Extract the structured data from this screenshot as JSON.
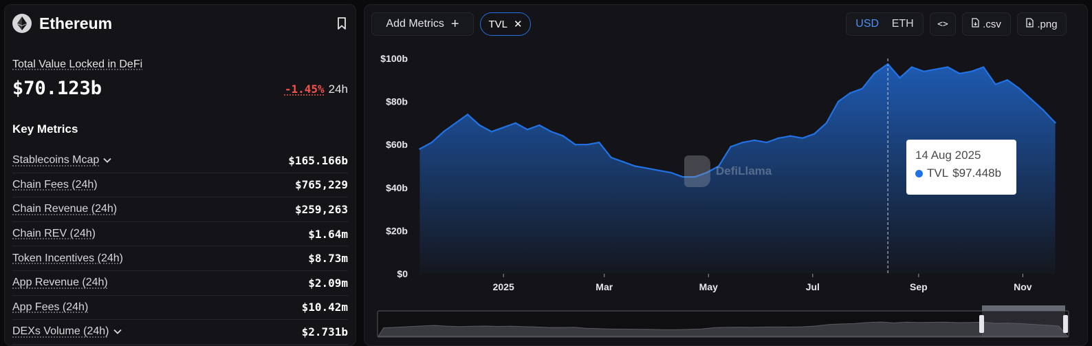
{
  "chain": {
    "name": "Ethereum",
    "logo_icon": "ethereum-diamond-icon",
    "bookmark_icon": "bookmark-icon"
  },
  "tvl": {
    "label": "Total Value Locked in DeFi",
    "value": "$70.123b",
    "change_pct": "-1.45%",
    "change_period": "24h"
  },
  "key_metrics": {
    "title": "Key Metrics",
    "rows": [
      {
        "label": "Stablecoins Mcap",
        "value": "$165.166b",
        "expandable": true
      },
      {
        "label": "Chain Fees (24h)",
        "value": "$765,229",
        "expandable": false
      },
      {
        "label": "Chain Revenue (24h)",
        "value": "$259,263",
        "expandable": false
      },
      {
        "label": "Chain REV (24h)",
        "value": "$1.64m",
        "expandable": false
      },
      {
        "label": "Token Incentives (24h)",
        "value": "$8.73m",
        "expandable": false
      },
      {
        "label": "App Revenue (24h)",
        "value": "$2.09m",
        "expandable": false
      },
      {
        "label": "App Fees (24h)",
        "value": "$10.42m",
        "expandable": false
      },
      {
        "label": "DEXs Volume (24h)",
        "value": "$2.731b",
        "expandable": true
      }
    ]
  },
  "toolbar": {
    "add_metrics_label": "Add Metrics",
    "add_icon": "plus-icon",
    "active_metric_chip": "TVL",
    "chip_close_icon": "close-icon",
    "currency_options": [
      "USD",
      "ETH"
    ],
    "currency_selected": "USD",
    "embed_label": "<>",
    "csv_label": ".csv",
    "png_label": ".png",
    "download_icon": "file-download-icon"
  },
  "watermark": {
    "text": "DefiLlama"
  },
  "tooltip": {
    "date": "14 Aug 2025",
    "series": "TVL",
    "value": "$97.448b"
  },
  "colors": {
    "accent": "#2172e5",
    "negative": "#f4524d",
    "background": "#141418"
  },
  "chart_data": {
    "type": "area",
    "series_name": "TVL",
    "y_unit": "USD (billions)",
    "ylim": [
      0,
      100
    ],
    "y_ticks": [
      "$0",
      "$20b",
      "$40b",
      "$60b",
      "$80b",
      "$100b"
    ],
    "x_ticks": [
      "2025",
      "Mar",
      "May",
      "Jul",
      "Sep",
      "Nov"
    ],
    "x": [
      "2024-11-13",
      "2024-11-20",
      "2024-11-27",
      "2024-12-04",
      "2024-12-11",
      "2024-12-18",
      "2024-12-25",
      "2025-01-01",
      "2025-01-08",
      "2025-01-15",
      "2025-01-22",
      "2025-01-29",
      "2025-02-05",
      "2025-02-12",
      "2025-02-19",
      "2025-02-26",
      "2025-03-05",
      "2025-03-12",
      "2025-03-19",
      "2025-03-26",
      "2025-04-02",
      "2025-04-09",
      "2025-04-16",
      "2025-04-23",
      "2025-04-30",
      "2025-05-07",
      "2025-05-14",
      "2025-05-21",
      "2025-05-28",
      "2025-06-04",
      "2025-06-11",
      "2025-06-18",
      "2025-06-25",
      "2025-07-02",
      "2025-07-09",
      "2025-07-16",
      "2025-07-23",
      "2025-07-30",
      "2025-08-06",
      "2025-08-14",
      "2025-08-21",
      "2025-08-28",
      "2025-09-04",
      "2025-09-11",
      "2025-09-18",
      "2025-09-25",
      "2025-10-02",
      "2025-10-09",
      "2025-10-16",
      "2025-10-23",
      "2025-10-30",
      "2025-11-06",
      "2025-11-13",
      "2025-11-20"
    ],
    "values": [
      58,
      61,
      66,
      70,
      74,
      69,
      66,
      68,
      70,
      67,
      69,
      66,
      64,
      60,
      60,
      61,
      54,
      52,
      50,
      49,
      48,
      47,
      45,
      45,
      47,
      50,
      59,
      61,
      62,
      61,
      63,
      64,
      63,
      65,
      70,
      80,
      84,
      86,
      93,
      97.448,
      91,
      96,
      94,
      95,
      96,
      93,
      94,
      96,
      88,
      90,
      86,
      81,
      76,
      70.123
    ],
    "tooltip_date": "2025-08-14",
    "grid": false,
    "legend": "none"
  }
}
